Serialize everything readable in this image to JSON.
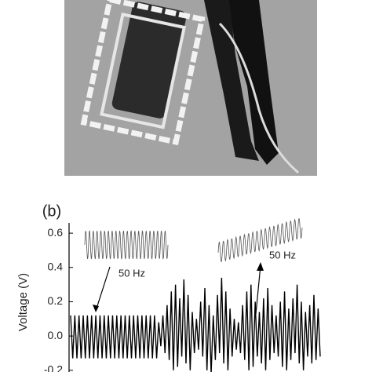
{
  "chart_data": {
    "type": "line",
    "panel_label": "(b)",
    "ylabel": "Voltage (V)",
    "ylim": [
      -0.21,
      0.66
    ],
    "yticks": [
      {
        "value": -0.2,
        "label": "-0.2"
      },
      {
        "value": 0,
        "label": "0.0"
      },
      0.2,
      0.4,
      0.6
    ],
    "annotations": [
      "50 Hz",
      "50 Hz"
    ],
    "series": [
      {
        "color": "#000000",
        "values": [
          0.12,
          -0.13,
          0.12,
          -0.13,
          0.12,
          -0.13,
          0.12,
          -0.13,
          0.12,
          -0.13,
          0.12,
          -0.13,
          0.12,
          -0.13,
          0.12,
          -0.13,
          0.12,
          -0.13,
          0.12,
          -0.13,
          0.12,
          -0.13,
          0.12,
          -0.13,
          0.12,
          -0.13,
          0.12,
          -0.13,
          0.12,
          -0.13,
          0.12,
          -0.13,
          0.12,
          -0.13,
          0.12,
          -0.13,
          0.12,
          -0.13,
          0.12,
          -0.13,
          0.12,
          -0.13,
          0.08,
          -0.06,
          0.12,
          -0.1,
          0.18,
          -0.14,
          0.26,
          -0.2,
          0.3,
          -0.18,
          0.22,
          -0.12,
          0.33,
          -0.16,
          0.24,
          -0.2,
          0.14,
          -0.1,
          0.1,
          -0.08,
          0.2,
          -0.12,
          0.28,
          -0.2,
          0.18,
          -0.22,
          0.12,
          -0.14,
          0.24,
          -0.1,
          0.34,
          -0.16,
          0.26,
          -0.2,
          0.16,
          -0.12,
          0.1,
          -0.08,
          0.08,
          -0.1,
          0.18,
          -0.14,
          0.26,
          -0.2,
          0.3,
          -0.18,
          0.2,
          -0.12,
          0.14,
          -0.16,
          0.22,
          -0.2,
          0.28,
          -0.14,
          0.18,
          -0.1,
          0.12,
          -0.12,
          0.2,
          -0.18,
          0.26,
          -0.2,
          0.16,
          -0.14,
          0.22,
          -0.1,
          0.3,
          -0.16,
          0.2,
          -0.2,
          0.14,
          -0.12,
          0.18,
          -0.16,
          0.24,
          -0.14,
          0.16,
          -0.12
        ]
      }
    ]
  }
}
